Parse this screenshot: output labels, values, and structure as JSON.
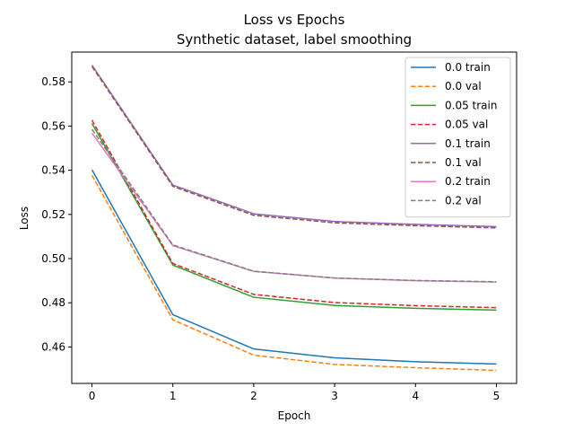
{
  "chart_data": {
    "type": "line",
    "title": "Loss vs Epochs",
    "subtitle": "Synthetic dataset, label smoothing",
    "xlabel": "Epoch",
    "ylabel": "Loss",
    "x": [
      0,
      1,
      2,
      3,
      4,
      5
    ],
    "xticks": [
      "0",
      "1",
      "2",
      "3",
      "4",
      "5"
    ],
    "yticks": [
      "0.46",
      "0.48",
      "0.50",
      "0.52",
      "0.54",
      "0.56",
      "0.58"
    ],
    "xlim": [
      -0.25,
      5.25
    ],
    "ylim": [
      0.4435,
      0.5935
    ],
    "grid": false,
    "legend_position": "top-right",
    "series": [
      {
        "name": "0.0 train",
        "color": "#1f77b4",
        "dash": "solid",
        "values": [
          0.5402,
          0.4746,
          0.4591,
          0.4551,
          0.4533,
          0.4523
        ]
      },
      {
        "name": "0.0 val",
        "color": "#ff7f0e",
        "dash": "dashed",
        "values": [
          0.5377,
          0.4723,
          0.4563,
          0.4521,
          0.4506,
          0.4494
        ]
      },
      {
        "name": "0.05 train",
        "color": "#2ca02c",
        "dash": "solid",
        "values": [
          0.5612,
          0.4971,
          0.4825,
          0.4788,
          0.4775,
          0.4767
        ]
      },
      {
        "name": "0.05 val",
        "color": "#d62728",
        "dash": "dashed",
        "values": [
          0.5627,
          0.4978,
          0.4838,
          0.4801,
          0.4787,
          0.4778
        ]
      },
      {
        "name": "0.1 train",
        "color": "#9467bd",
        "dash": "solid",
        "values": [
          0.5876,
          0.5333,
          0.5203,
          0.5168,
          0.5155,
          0.5145
        ]
      },
      {
        "name": "0.1 val",
        "color": "#8c564b",
        "dash": "dashed",
        "values": [
          0.587,
          0.5327,
          0.5196,
          0.5162,
          0.5149,
          0.5139
        ]
      },
      {
        "name": "0.2 train",
        "color": "#e377c2",
        "dash": "solid",
        "values": [
          0.5568,
          0.5059,
          0.4942,
          0.4912,
          0.49,
          0.4894
        ]
      },
      {
        "name": "0.2 val",
        "color": "#7f7f7f",
        "dash": "dashed",
        "values": [
          0.5585,
          0.5062,
          0.4943,
          0.4912,
          0.4901,
          0.4895
        ]
      }
    ]
  }
}
